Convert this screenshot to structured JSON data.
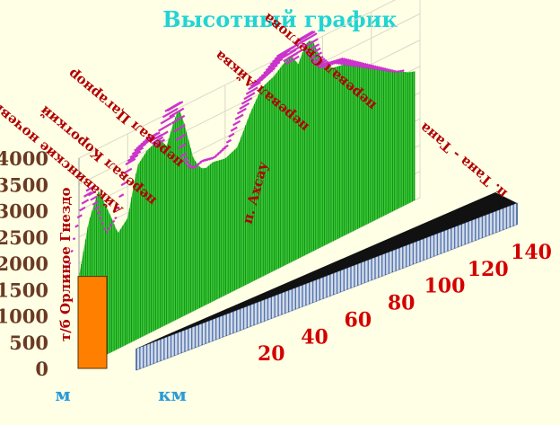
{
  "title": "Высотный график",
  "colors": {
    "background": "#ffffe6",
    "title": "#22d4d4",
    "terrain_fill": "#33cc33",
    "ridge_top": "#cc33cc",
    "start_bar": "#ff8000",
    "distance_bar": "#9bb3e6",
    "axis_text_y": "#6b3a22",
    "axis_text_x": "#d40000",
    "annotations": "#b00000",
    "units": "#2a9ad8"
  },
  "chart_data": {
    "type": "area",
    "title": "Высотный график",
    "xlabel": "км",
    "ylabel": "м",
    "xlim": [
      0,
      140
    ],
    "ylim": [
      0,
      4000
    ],
    "x_ticks": [
      "20",
      "40",
      "60",
      "80",
      "100",
      "120",
      "140"
    ],
    "y_ticks": [
      "0",
      "500",
      "1000",
      "1500",
      "2000",
      "2500",
      "3000",
      "3500",
      "4000"
    ],
    "grid": true,
    "x": [
      0,
      4,
      8,
      13,
      16,
      20,
      24,
      28,
      33,
      36,
      39,
      41,
      43,
      47,
      50,
      52,
      55,
      60,
      65,
      70,
      75,
      80,
      84,
      87,
      90,
      92,
      94,
      96,
      98,
      101,
      104,
      110,
      115,
      120,
      125,
      130,
      135,
      138
    ],
    "y": [
      1750,
      2700,
      3200,
      2600,
      2200,
      2400,
      3300,
      3500,
      3600,
      3400,
      3800,
      4000,
      3700,
      2900,
      2650,
      2600,
      2650,
      2600,
      2700,
      3200,
      3600,
      3700,
      3850,
      3950,
      3700,
      3900,
      4050,
      4000,
      3750,
      3450,
      3300,
      3250,
      3100,
      2950,
      2800,
      2650,
      2500,
      2450
    ],
    "annotations": [
      {
        "text": "т/б Орлиное Гнездо",
        "x": 0
      },
      {
        "text": "Айкавинские ночевки",
        "x": 8
      },
      {
        "text": "перевал Короткий",
        "x": 24
      },
      {
        "text": "перевал Цагарнор",
        "x": 41
      },
      {
        "text": "п. Ахсау",
        "x": 60
      },
      {
        "text": "перевал Айква",
        "x": 84
      },
      {
        "text": "перевал Светлова",
        "x": 96
      },
      {
        "text": "п. Тана - Тана",
        "x": 138
      }
    ]
  }
}
